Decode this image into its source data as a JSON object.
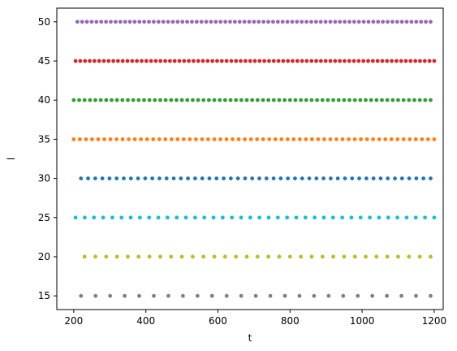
{
  "chart_data": {
    "type": "scatter",
    "title": "",
    "xlabel": "t",
    "ylabel": "l",
    "xlim": [
      153,
      1225
    ],
    "ylim": [
      13.25,
      51.75
    ],
    "grid": false,
    "x_ticks": [
      200,
      400,
      600,
      800,
      1000,
      1200
    ],
    "y_ticks": [
      15,
      20,
      25,
      30,
      35,
      40,
      45,
      50
    ],
    "series": [
      {
        "y": 50,
        "color": "#9467bd",
        "x_start": 210,
        "x_end": 1190,
        "count": 75
      },
      {
        "y": 45,
        "color": "#d62728",
        "x_start": 205,
        "x_end": 1200,
        "count": 77
      },
      {
        "y": 40,
        "color": "#2ca02c",
        "x_start": 200,
        "x_end": 1190,
        "count": 67
      },
      {
        "y": 35,
        "color": "#ff7f0e",
        "x_start": 200,
        "x_end": 1200,
        "count": 60
      },
      {
        "y": 30,
        "color": "#1f77b4",
        "x_start": 220,
        "x_end": 1190,
        "count": 50
      },
      {
        "y": 25,
        "color": "#17becf",
        "x_start": 205,
        "x_end": 1200,
        "count": 40
      },
      {
        "y": 20,
        "color": "#bcbd22",
        "x_start": 230,
        "x_end": 1190,
        "count": 33
      },
      {
        "y": 15,
        "color": "#7f7f7f",
        "x_start": 220,
        "x_end": 1190,
        "count": 25
      }
    ]
  }
}
